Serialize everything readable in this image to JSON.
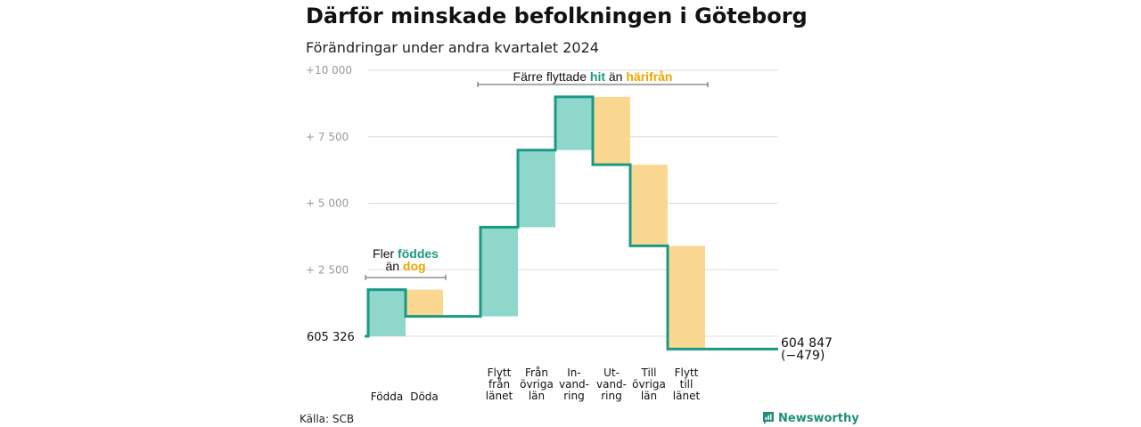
{
  "header": {
    "title": "Därför minskade befolkningen i Göteborg",
    "subtitle": "Förändringar under andra kvartalet 2024"
  },
  "footer": {
    "source": "Källa: SCB",
    "brand": "Newsworthy"
  },
  "colors": {
    "increase": "#8fd6cb",
    "decrease": "#fbd892",
    "line": "#1a9985",
    "grid": "#dddddd",
    "brand": "#1f8f7a"
  },
  "chart_data": {
    "type": "bar",
    "subtype": "waterfall",
    "start_value_label": "605  326",
    "end_value_label": [
      "604 847",
      "(−479)"
    ],
    "ylim": [
      -500,
      10000
    ],
    "y_ticks": [
      {
        "value": 2500,
        "label": "+  2  500"
      },
      {
        "value": 5000,
        "label": "+  5  000"
      },
      {
        "value": 7500,
        "label": "+  7  500"
      },
      {
        "value": 10000,
        "label": "+10    000"
      }
    ],
    "steps": [
      {
        "lines": [
          "Födda"
        ],
        "start": 0,
        "end": 1750,
        "direction": "increase"
      },
      {
        "lines": [
          "Döda"
        ],
        "start": 1750,
        "end": 750,
        "direction": "decrease"
      },
      {
        "lines": [
          "Flytt",
          "från",
          "länet"
        ],
        "start": 750,
        "end": 4100,
        "direction": "increase"
      },
      {
        "lines": [
          "Från",
          "övriga",
          "län"
        ],
        "start": 4100,
        "end": 7000,
        "direction": "increase"
      },
      {
        "lines": [
          "In-",
          "vand-",
          "ring"
        ],
        "start": 7000,
        "end": 9000,
        "direction": "increase"
      },
      {
        "lines": [
          "Ut-",
          "vand-",
          "ring"
        ],
        "start": 9000,
        "end": 6450,
        "direction": "decrease"
      },
      {
        "lines": [
          "Till",
          "övriga",
          "län"
        ],
        "start": 6450,
        "end": 3400,
        "direction": "decrease"
      },
      {
        "lines": [
          "Flytt",
          "till",
          "länet"
        ],
        "start": 3400,
        "end": -479,
        "direction": "decrease"
      }
    ],
    "annotations": [
      {
        "lines": [
          [
            {
              "text": "Fler ",
              "style": ""
            },
            {
              "text": "föddes",
              "style": "teal"
            }
          ],
          [
            {
              "text": "än ",
              "style": ""
            },
            {
              "text": "dog",
              "style": "orange"
            }
          ]
        ],
        "from_step": 0,
        "to_step": 1
      },
      {
        "lines": [
          [
            {
              "text": "Färre flyttade ",
              "style": ""
            },
            {
              "text": "hit",
              "style": "teal"
            },
            {
              "text": "  än  ",
              "style": ""
            },
            {
              "text": "härifrån",
              "style": "orange"
            }
          ]
        ],
        "from_step": 2,
        "to_step": 7
      }
    ]
  }
}
